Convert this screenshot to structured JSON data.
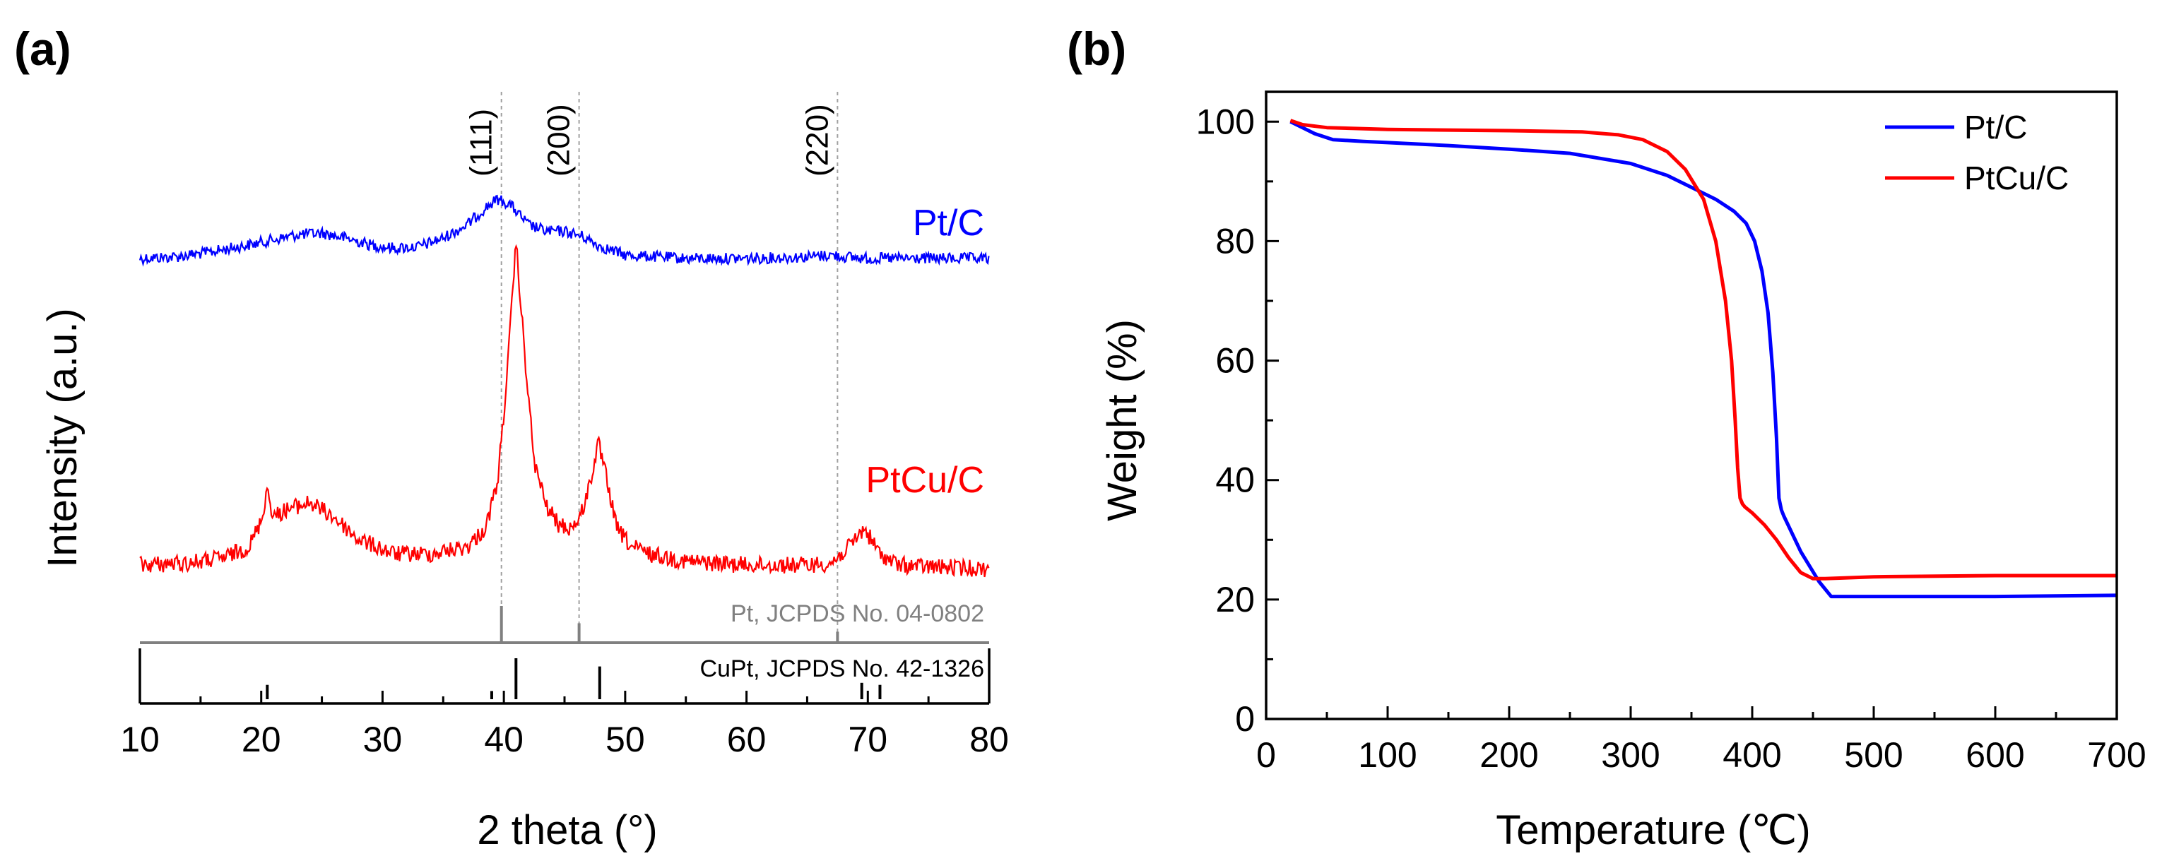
{
  "colors": {
    "pt_c": "#0000ff",
    "ptcu_c": "#ff0000",
    "pt_ref": "#808080",
    "cupt_ref": "#000000",
    "axis": "#000000",
    "guide": "#a0a0a0"
  },
  "chart_data": [
    {
      "panel_label": "(a)",
      "type": "line",
      "title": "",
      "xlabel": "2 theta (°)",
      "ylabel": "Intensity (a.u.)",
      "xlim": [
        10,
        80
      ],
      "xticks": [
        10,
        20,
        30,
        40,
        50,
        60,
        70,
        80
      ],
      "tick_labels": [
        "10",
        "20",
        "30",
        "40",
        "50",
        "60",
        "70",
        "80"
      ],
      "y_ticks_shown": false,
      "series": [
        {
          "name": "Pt/C",
          "color_key": "pt_c",
          "baseline": 0.78,
          "x": [
            10,
            13,
            16,
            19,
            21,
            23,
            25,
            27,
            29,
            31,
            33,
            35,
            37,
            38.5,
            39.5,
            40.5,
            42,
            43.5,
            45,
            46.5,
            48,
            50,
            55,
            60,
            65,
            67,
            68,
            70,
            75,
            80
          ],
          "y": [
            0.78,
            0.785,
            0.8,
            0.82,
            0.835,
            0.85,
            0.855,
            0.84,
            0.82,
            0.81,
            0.815,
            0.84,
            0.88,
            0.93,
            0.955,
            0.94,
            0.88,
            0.86,
            0.86,
            0.845,
            0.815,
            0.79,
            0.78,
            0.78,
            0.785,
            0.79,
            0.785,
            0.78,
            0.78,
            0.78
          ]
        },
        {
          "name": "PtCu/C",
          "color_key": "ptcu_c",
          "baseline": 0.12,
          "x": [
            10,
            14,
            17,
            19,
            20,
            20.5,
            21,
            22,
            24,
            26,
            28,
            31,
            34,
            37,
            38.5,
            39.5,
            40.3,
            41,
            41.7,
            42.5,
            43.5,
            44.5,
            45.5,
            46.3,
            47,
            47.8,
            48.5,
            49.3,
            50.5,
            52,
            55,
            60,
            65,
            67,
            68.5,
            69.7,
            71,
            72.5,
            75,
            80
          ],
          "y": [
            0.12,
            0.125,
            0.14,
            0.17,
            0.24,
            0.33,
            0.25,
            0.27,
            0.29,
            0.25,
            0.19,
            0.15,
            0.15,
            0.17,
            0.22,
            0.35,
            0.65,
            1.0,
            0.7,
            0.4,
            0.28,
            0.23,
            0.22,
            0.25,
            0.33,
            0.45,
            0.35,
            0.22,
            0.17,
            0.15,
            0.13,
            0.12,
            0.12,
            0.125,
            0.17,
            0.22,
            0.15,
            0.12,
            0.115,
            0.11
          ]
        }
      ],
      "reference_patterns": [
        {
          "label": "Pt, JCPDS No. 04-0802",
          "color_key": "pt_ref",
          "peaks": [
            {
              "x": 39.8,
              "rel": 1.0
            },
            {
              "x": 46.2,
              "rel": 0.53
            },
            {
              "x": 67.5,
              "rel": 0.3
            }
          ]
        },
        {
          "label": "CuPt, JCPDS No. 42-1326",
          "color_key": "cupt_ref",
          "peaks": [
            {
              "x": 20.5,
              "rel": 0.35
            },
            {
              "x": 39.0,
              "rel": 0.2
            },
            {
              "x": 41.0,
              "rel": 1.0
            },
            {
              "x": 47.9,
              "rel": 0.8
            },
            {
              "x": 69.5,
              "rel": 0.4
            },
            {
              "x": 71.0,
              "rel": 0.35
            }
          ]
        }
      ],
      "hkl_lines": [
        {
          "label": "(111)",
          "x": 39.8
        },
        {
          "label": "(200)",
          "x": 46.2
        },
        {
          "label": "(220)",
          "x": 67.5
        }
      ]
    },
    {
      "panel_label": "(b)",
      "type": "line",
      "title": "",
      "xlabel": "Temperature (℃)",
      "ylabel": "Weight (%)",
      "xlim": [
        0,
        700
      ],
      "ylim": [
        0,
        105
      ],
      "xticks": [
        0,
        100,
        200,
        300,
        400,
        500,
        600,
        700
      ],
      "x_tick_labels": [
        "0",
        "100",
        "200",
        "300",
        "400",
        "500",
        "600",
        "700"
      ],
      "yticks": [
        0,
        20,
        40,
        60,
        80,
        100
      ],
      "y_tick_labels": [
        "0",
        "20",
        "40",
        "60",
        "80",
        "100"
      ],
      "legend": "top-right",
      "series": [
        {
          "name": "Pt/C",
          "color_key": "pt_c",
          "x": [
            20,
            30,
            40,
            55,
            80,
            100,
            150,
            200,
            250,
            300,
            330,
            350,
            370,
            385,
            395,
            402,
            408,
            413,
            417,
            420,
            422,
            424,
            426,
            440,
            455,
            465,
            475,
            500,
            600,
            700
          ],
          "y": [
            100,
            99,
            98,
            97,
            96.7,
            96.5,
            96,
            95.4,
            94.7,
            93,
            91,
            89,
            87,
            85,
            83,
            80,
            75,
            68,
            58,
            47,
            37,
            35,
            34,
            28,
            23,
            20.5,
            20.5,
            20.5,
            20.5,
            20.7
          ]
        },
        {
          "name": "PtCu/C",
          "color_key": "ptcu_c",
          "x": [
            20,
            30,
            50,
            100,
            200,
            260,
            290,
            310,
            330,
            345,
            360,
            370,
            378,
            383,
            386,
            388,
            390,
            392,
            394,
            400,
            410,
            420,
            430,
            440,
            450,
            460,
            500,
            600,
            700
          ],
          "y": [
            100.2,
            99.5,
            99,
            98.7,
            98.5,
            98.3,
            97.8,
            97,
            95,
            92,
            87,
            80,
            70,
            60,
            50,
            42,
            37,
            36,
            35.5,
            34.5,
            32.5,
            30,
            27,
            24.5,
            23.5,
            23.5,
            23.8,
            24,
            24
          ]
        }
      ]
    }
  ]
}
